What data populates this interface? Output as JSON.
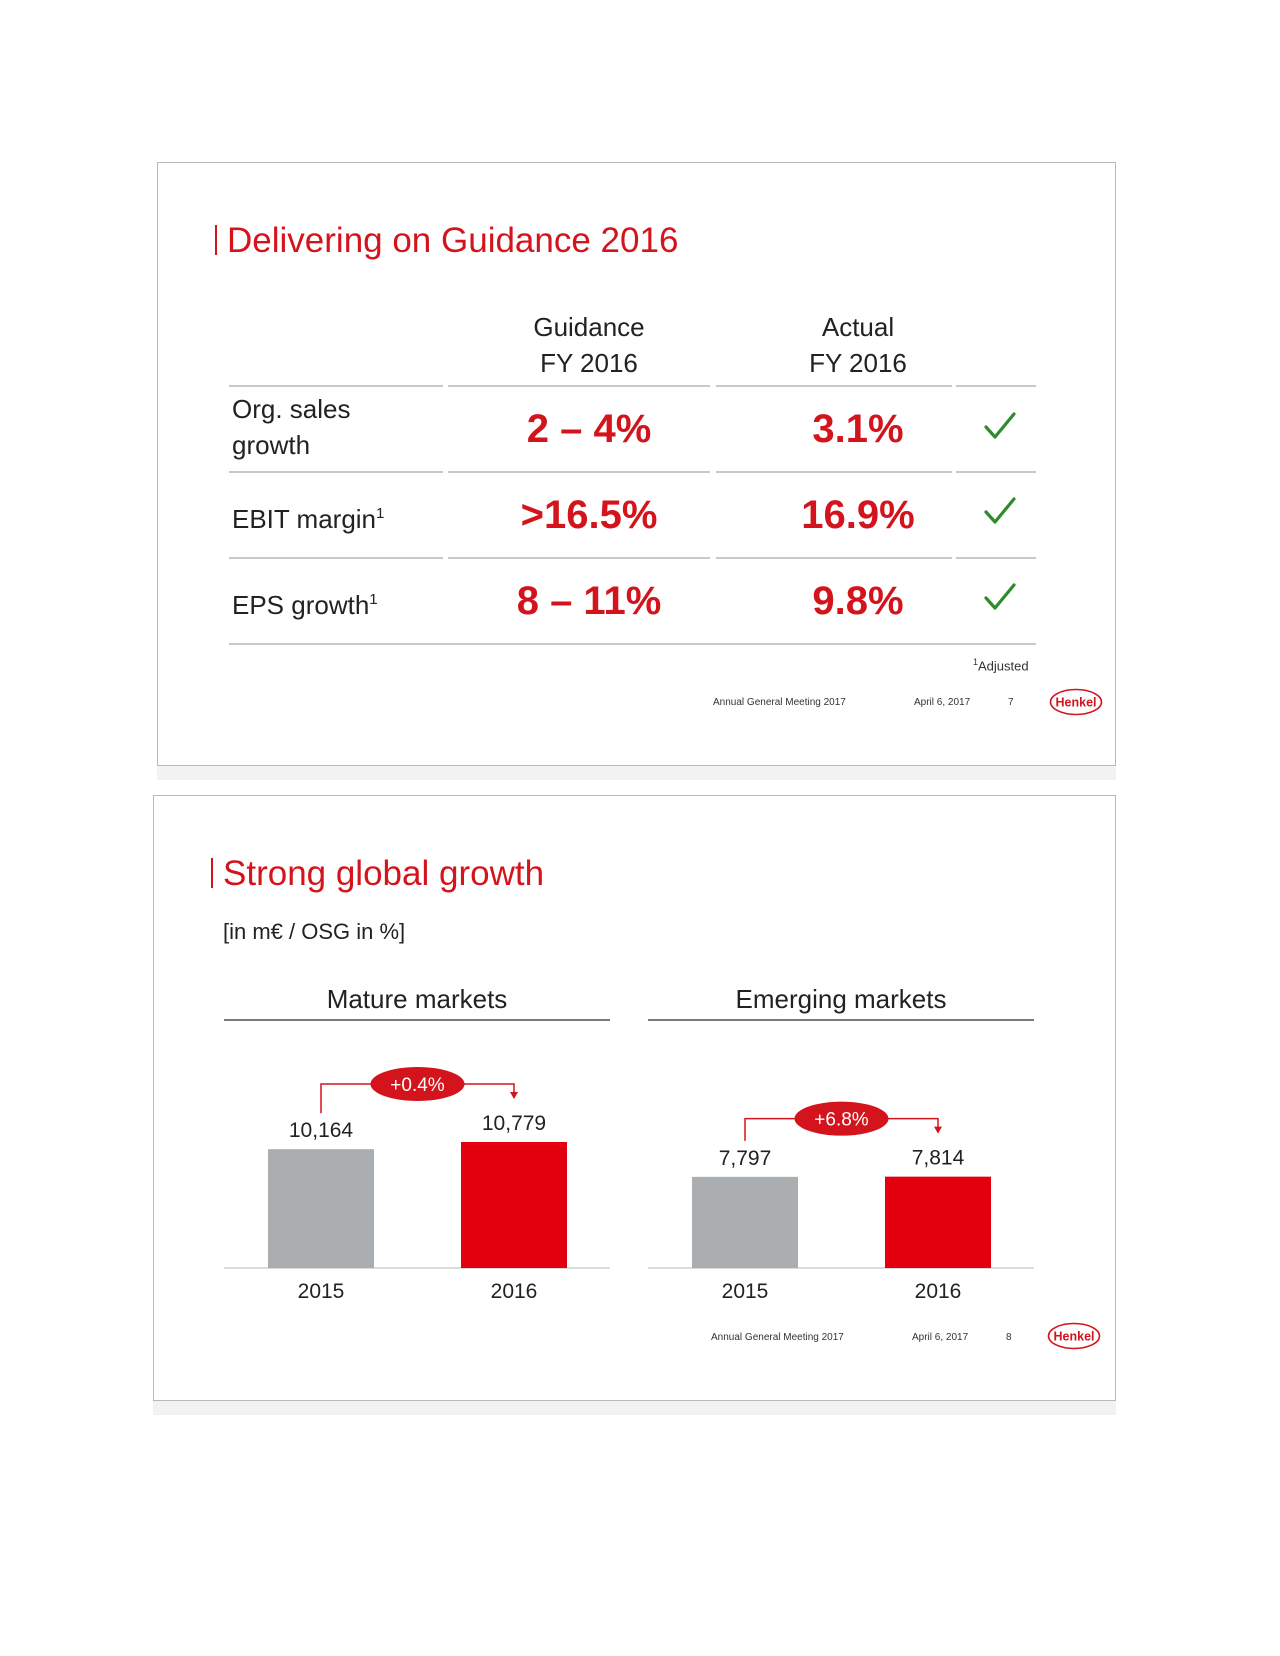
{
  "slide1": {
    "title": "Delivering on Guidance 2016",
    "col_guidance": [
      "Guidance",
      "FY 2016"
    ],
    "col_actual": [
      "Actual",
      "FY 2016"
    ],
    "rows": [
      {
        "label": [
          "Org. sales",
          "growth"
        ],
        "sup": "",
        "guidance": "2 – 4%",
        "actual": "3.1%",
        "status_icon": "checkmark-icon"
      },
      {
        "label": [
          "EBIT margin"
        ],
        "sup": "1",
        "guidance": ">16.5%",
        "actual": "16.9%",
        "status_icon": "checkmark-icon"
      },
      {
        "label": [
          "EPS growth"
        ],
        "sup": "1",
        "guidance": "8 – 11%",
        "actual": "9.8%",
        "status_icon": "checkmark-icon"
      }
    ],
    "footnote_sup": "1",
    "footnote": "Adjusted",
    "footer": {
      "event": "Annual General Meeting 2017",
      "date": "April 6, 2017",
      "page": "7",
      "logo": "Henkel"
    }
  },
  "slide2": {
    "title": "Strong global growth",
    "subtitle": "[in m€ / OSG in %]",
    "footer": {
      "event": "Annual General Meeting 2017",
      "date": "April 6, 2017",
      "page": "8",
      "logo": "Henkel"
    }
  },
  "colors": {
    "accent": "#d4141c",
    "bar_prior": "#abaeb1",
    "bar_current": "#e2000f",
    "check": "#2e8b2e"
  },
  "chart_data": [
    {
      "type": "bar",
      "title": "Mature markets",
      "categories": [
        "2015",
        "2016"
      ],
      "values": [
        10164,
        10779
      ],
      "value_labels": [
        "10,164",
        "10,779"
      ],
      "growth_label": "+0.4%"
    },
    {
      "type": "bar",
      "title": "Emerging markets",
      "categories": [
        "2015",
        "2016"
      ],
      "values": [
        7797,
        7814
      ],
      "value_labels": [
        "7,797",
        "7,814"
      ],
      "growth_label": "+6.8%"
    }
  ]
}
